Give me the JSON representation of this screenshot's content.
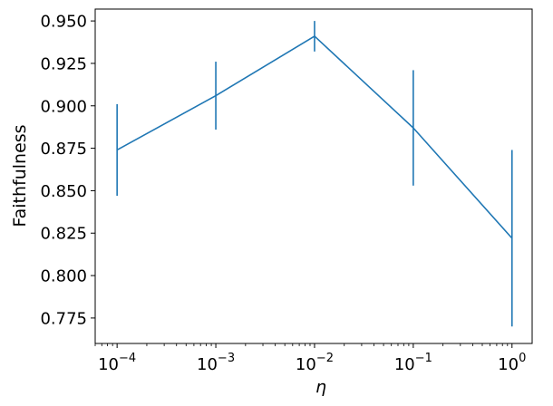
{
  "chart_data": {
    "type": "line",
    "xlabel": "η",
    "ylabel": "Faithfulness",
    "xscale": "log",
    "xlim": [
      6e-05,
      1.6
    ],
    "ylim": [
      0.76,
      0.957
    ],
    "grid": false,
    "x_ticks": [
      {
        "value": 0.0001,
        "base": "10",
        "exp": "−4"
      },
      {
        "value": 0.001,
        "base": "10",
        "exp": "−3"
      },
      {
        "value": 0.01,
        "base": "10",
        "exp": "−2"
      },
      {
        "value": 0.1,
        "base": "10",
        "exp": "−1"
      },
      {
        "value": 1,
        "base": "10",
        "exp": "0"
      }
    ],
    "y_ticks": [
      "0.775",
      "0.800",
      "0.825",
      "0.850",
      "0.875",
      "0.900",
      "0.925",
      "0.950"
    ],
    "series": [
      {
        "color": "#1f77b4",
        "x": [
          0.0001,
          0.001,
          0.01,
          0.1,
          1
        ],
        "y": [
          0.874,
          0.906,
          0.941,
          0.887,
          0.822
        ],
        "err_low": [
          0.847,
          0.886,
          0.932,
          0.853,
          0.77
        ],
        "err_high": [
          0.901,
          0.926,
          0.95,
          0.921,
          0.874
        ]
      }
    ]
  }
}
